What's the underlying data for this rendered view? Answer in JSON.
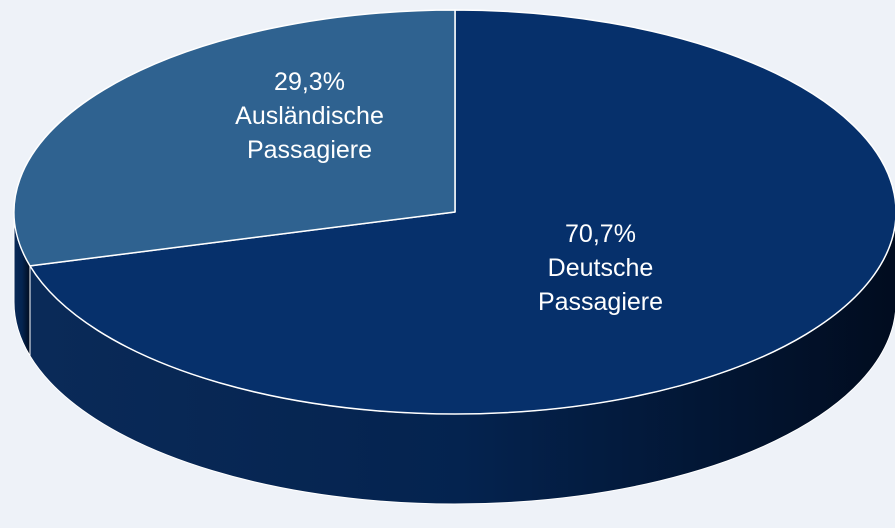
{
  "chart_data": {
    "type": "pie",
    "categories": [
      "Deutsche Passagiere",
      "Ausländische Passagiere"
    ],
    "values": [
      70.7,
      29.3
    ],
    "value_labels": [
      "70,7%",
      "29,3%"
    ],
    "colors": [
      "#06306b",
      "#2f6290"
    ]
  }
}
